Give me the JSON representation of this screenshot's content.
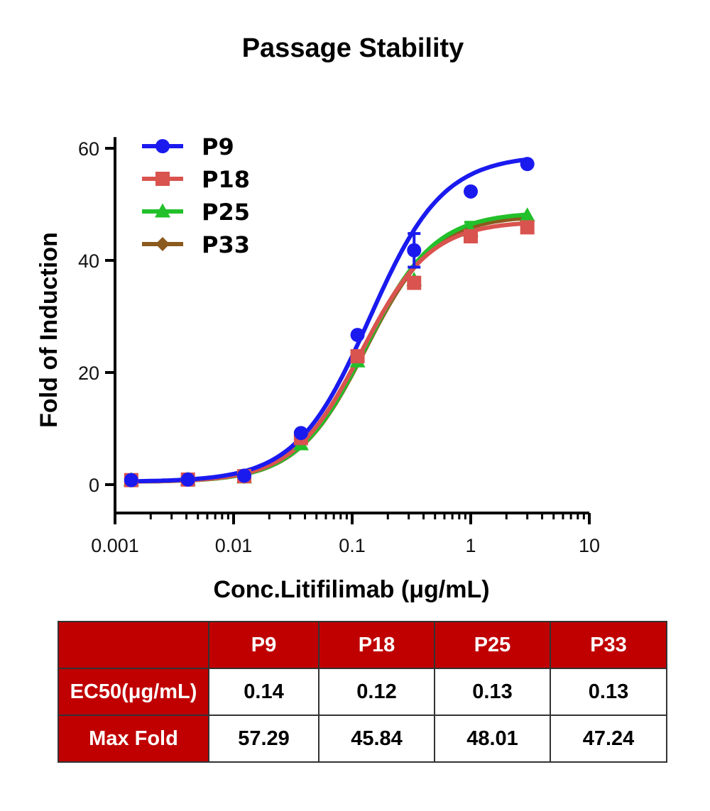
{
  "chart_data": {
    "type": "line",
    "title": "Passage Stability",
    "xlabel": "Conc.Litifilimab (μg/mL)",
    "ylabel": "Fold of Induction",
    "x_scale": "log",
    "xlim": [
      0.001,
      10
    ],
    "ylim": [
      -5,
      62
    ],
    "x_ticks": [
      0.001,
      0.01,
      0.1,
      1,
      10
    ],
    "x_tick_labels": [
      "0.001",
      "0.01",
      "0.1",
      "1",
      "10"
    ],
    "y_ticks": [
      0,
      20,
      40,
      60
    ],
    "y_tick_labels": [
      "0",
      "20",
      "40",
      "60"
    ],
    "legend_position": "top-left",
    "grid": false,
    "x": [
      0.00137,
      0.00412,
      0.0123,
      0.037,
      0.111,
      0.333,
      1.0,
      3.0
    ],
    "series": [
      {
        "name": "P9",
        "color": "#1a1aef",
        "marker": "circle",
        "values": [
          0.8,
          0.9,
          1.6,
          9.2,
          26.7,
          41.8,
          52.3,
          57.2
        ],
        "error": [
          0,
          0,
          0,
          0,
          0,
          3.0,
          0,
          0
        ],
        "fit": {
          "bottom": 0.5,
          "top": 58.8,
          "ec50": 0.14,
          "hill": 1.4
        }
      },
      {
        "name": "P18",
        "color": "#d9534f",
        "marker": "square",
        "values": [
          0.8,
          0.9,
          1.5,
          8.3,
          22.9,
          36.0,
          44.3,
          45.9
        ],
        "error": [
          0,
          0,
          0,
          0,
          0,
          0,
          0,
          0
        ],
        "fit": {
          "bottom": 0.5,
          "top": 47.0,
          "ec50": 0.12,
          "hill": 1.5
        }
      },
      {
        "name": "P25",
        "color": "#22c02a",
        "marker": "triangle",
        "values": [
          0.8,
          0.9,
          1.3,
          7.2,
          22.0,
          36.5,
          45.3,
          48.0
        ],
        "error": [
          0,
          0,
          0,
          0,
          0,
          0,
          1.5,
          0
        ],
        "fit": {
          "bottom": 0.5,
          "top": 48.6,
          "ec50": 0.13,
          "hill": 1.5
        }
      },
      {
        "name": "P33",
        "color": "#8b5a1e",
        "marker": "diamond",
        "values": [
          0.8,
          0.9,
          1.4,
          7.6,
          22.3,
          36.2,
          44.8,
          47.2
        ],
        "error": [
          0,
          0,
          0,
          0,
          0,
          0,
          0,
          0
        ],
        "fit": {
          "bottom": 0.5,
          "top": 48.0,
          "ec50": 0.13,
          "hill": 1.5
        }
      }
    ]
  },
  "table": {
    "header": [
      "",
      "P9",
      "P18",
      "P25",
      "P33"
    ],
    "rows": [
      {
        "label": "EC50(μg/mL)",
        "values": [
          "0.14",
          "0.12",
          "0.13",
          "0.13"
        ]
      },
      {
        "label": "Max Fold",
        "values": [
          "57.29",
          "45.84",
          "48.01",
          "47.24"
        ]
      }
    ]
  }
}
